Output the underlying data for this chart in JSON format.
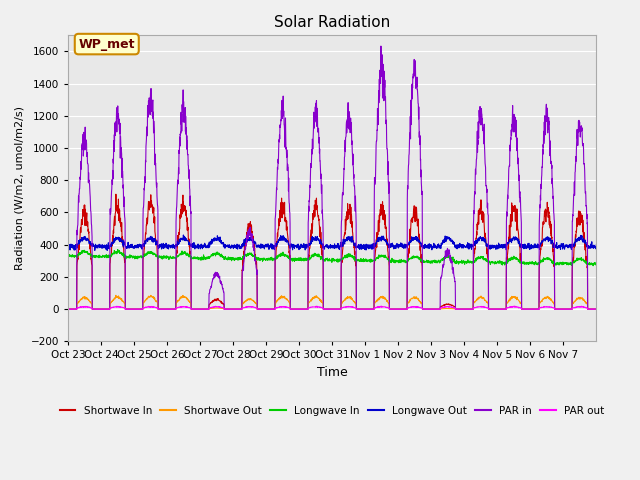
{
  "title": "Solar Radiation",
  "xlabel": "Time",
  "ylabel": "Radiation (W/m2, umol/m2/s)",
  "ylim": [
    -200,
    1700
  ],
  "yticks": [
    -200,
    0,
    200,
    400,
    600,
    800,
    1000,
    1200,
    1400,
    1600
  ],
  "x_tick_labels": [
    "Oct 23",
    "Oct 24",
    "Oct 25",
    "Oct 26",
    "Oct 27",
    "Oct 28",
    "Oct 29",
    "Oct 30",
    "Oct 31",
    "Nov 1",
    "Nov 2",
    "Nov 3",
    "Nov 4",
    "Nov 5",
    "Nov 6",
    "Nov 7"
  ],
  "legend_labels": [
    "Shortwave In",
    "Shortwave Out",
    "Longwave In",
    "Longwave Out",
    "PAR in",
    "PAR out"
  ],
  "colors": {
    "shortwave_in": "#cc0000",
    "shortwave_out": "#ff9900",
    "longwave_in": "#00cc00",
    "longwave_out": "#0000cc",
    "par_in": "#8800cc",
    "par_out": "#ff00ff"
  },
  "bg_color": "#e8e8e8",
  "grid_color": "#ffffff",
  "n_days": 16,
  "pts_per_day": 144,
  "longwave_in_base": 330,
  "longwave_out_base": 390,
  "annotation_text": "WP_met",
  "annotation_bg": "#ffffcc",
  "annotation_border": "#cc8800"
}
